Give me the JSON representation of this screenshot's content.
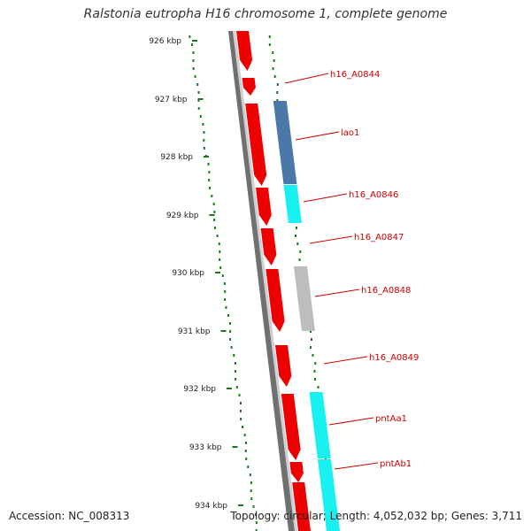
{
  "title": "Ralstonia eutropha H16 chromosome 1, complete genome",
  "accession": "Accession: NC_008313",
  "topology": "Topology: circular; Length: 4,052,032 bp; Genes: 3,711",
  "ruler": [
    {
      "label": "926 kbp"
    },
    {
      "label": "927 kbp"
    },
    {
      "label": "928 kbp"
    },
    {
      "label": "929 kbp"
    },
    {
      "label": "930 kbp"
    },
    {
      "label": "931 kbp"
    },
    {
      "label": "932 kbp"
    },
    {
      "label": "933 kbp"
    },
    {
      "label": "934 kbp"
    }
  ],
  "genes": [
    {
      "name": "h16_A0844"
    },
    {
      "name": "lao1"
    },
    {
      "name": "h16_A0846"
    },
    {
      "name": "h16_A0847"
    },
    {
      "name": "h16_A0848"
    },
    {
      "name": "h16_A0849"
    },
    {
      "name": "pntAa1"
    },
    {
      "name": "pntAb1"
    }
  ],
  "colors": {
    "backbone": "#808080",
    "cds": "#ee0000",
    "cds_blue": "#4a78a8",
    "cds_cyan": "#19f0f0",
    "cds_gray": "#bdbdbd",
    "gc_dots": "#1a7a1a",
    "label": "#cc0000"
  }
}
